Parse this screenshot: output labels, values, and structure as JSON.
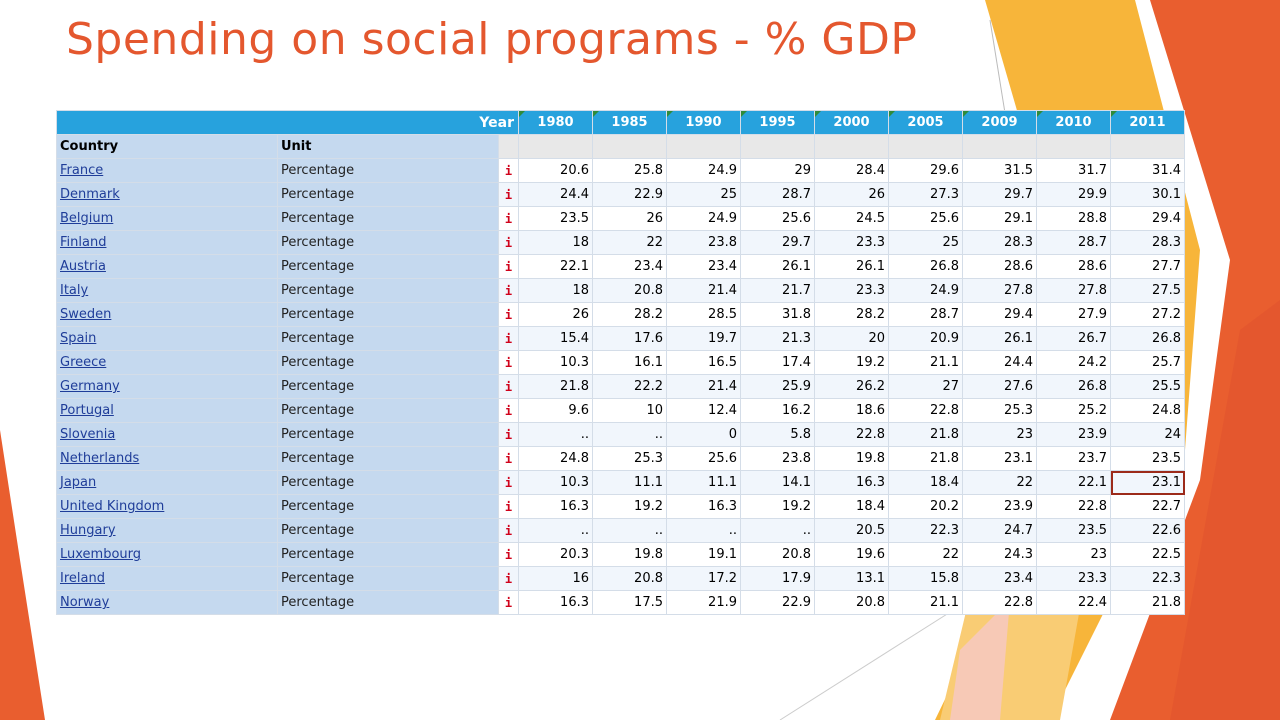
{
  "slide": {
    "title": "Spending on social programs - % GDP"
  },
  "table": {
    "year_label": "Year",
    "col_country": "Country",
    "col_unit": "Unit",
    "info_glyph": "i",
    "years": [
      "1980",
      "1985",
      "1990",
      "1995",
      "2000",
      "2005",
      "2009",
      "2010",
      "2011"
    ],
    "rows": [
      {
        "country": "France",
        "unit": "Percentage",
        "values": [
          "20.6",
          "25.8",
          "24.9",
          "29",
          "28.4",
          "29.6",
          "31.5",
          "31.7",
          "31.4"
        ]
      },
      {
        "country": "Denmark",
        "unit": "Percentage",
        "values": [
          "24.4",
          "22.9",
          "25",
          "28.7",
          "26",
          "27.3",
          "29.7",
          "29.9",
          "30.1"
        ]
      },
      {
        "country": "Belgium",
        "unit": "Percentage",
        "values": [
          "23.5",
          "26",
          "24.9",
          "25.6",
          "24.5",
          "25.6",
          "29.1",
          "28.8",
          "29.4"
        ]
      },
      {
        "country": "Finland",
        "unit": "Percentage",
        "values": [
          "18",
          "22",
          "23.8",
          "29.7",
          "23.3",
          "25",
          "28.3",
          "28.7",
          "28.3"
        ]
      },
      {
        "country": "Austria",
        "unit": "Percentage",
        "values": [
          "22.1",
          "23.4",
          "23.4",
          "26.1",
          "26.1",
          "26.8",
          "28.6",
          "28.6",
          "27.7"
        ]
      },
      {
        "country": "Italy",
        "unit": "Percentage",
        "values": [
          "18",
          "20.8",
          "21.4",
          "21.7",
          "23.3",
          "24.9",
          "27.8",
          "27.8",
          "27.5"
        ]
      },
      {
        "country": "Sweden",
        "unit": "Percentage",
        "values": [
          "26",
          "28.2",
          "28.5",
          "31.8",
          "28.2",
          "28.7",
          "29.4",
          "27.9",
          "27.2"
        ]
      },
      {
        "country": "Spain",
        "unit": "Percentage",
        "values": [
          "15.4",
          "17.6",
          "19.7",
          "21.3",
          "20",
          "20.9",
          "26.1",
          "26.7",
          "26.8"
        ]
      },
      {
        "country": "Greece",
        "unit": "Percentage",
        "values": [
          "10.3",
          "16.1",
          "16.5",
          "17.4",
          "19.2",
          "21.1",
          "24.4",
          "24.2",
          "25.7"
        ]
      },
      {
        "country": "Germany",
        "unit": "Percentage",
        "values": [
          "21.8",
          "22.2",
          "21.4",
          "25.9",
          "26.2",
          "27",
          "27.6",
          "26.8",
          "25.5"
        ]
      },
      {
        "country": "Portugal",
        "unit": "Percentage",
        "values": [
          "9.6",
          "10",
          "12.4",
          "16.2",
          "18.6",
          "22.8",
          "25.3",
          "25.2",
          "24.8"
        ]
      },
      {
        "country": "Slovenia",
        "unit": "Percentage",
        "values": [
          "..",
          "..",
          "0",
          "5.8",
          "22.8",
          "21.8",
          "23",
          "23.9",
          "24"
        ]
      },
      {
        "country": "Netherlands",
        "unit": "Percentage",
        "values": [
          "24.8",
          "25.3",
          "25.6",
          "23.8",
          "19.8",
          "21.8",
          "23.1",
          "23.7",
          "23.5"
        ]
      },
      {
        "country": "Japan",
        "unit": "Percentage",
        "values": [
          "10.3",
          "11.1",
          "11.1",
          "14.1",
          "16.3",
          "18.4",
          "22",
          "22.1",
          "23.1"
        ]
      },
      {
        "country": "United Kingdom",
        "unit": "Percentage",
        "values": [
          "16.3",
          "19.2",
          "16.3",
          "19.2",
          "18.4",
          "20.2",
          "23.9",
          "22.8",
          "22.7"
        ]
      },
      {
        "country": "Hungary",
        "unit": "Percentage",
        "values": [
          "..",
          "..",
          "..",
          "..",
          "20.5",
          "22.3",
          "24.7",
          "23.5",
          "22.6"
        ]
      },
      {
        "country": "Luxembourg",
        "unit": "Percentage",
        "values": [
          "20.3",
          "19.8",
          "19.1",
          "20.8",
          "19.6",
          "22",
          "24.3",
          "23",
          "22.5"
        ]
      },
      {
        "country": "Ireland",
        "unit": "Percentage",
        "values": [
          "16",
          "20.8",
          "17.2",
          "17.9",
          "13.1",
          "15.8",
          "23.4",
          "23.3",
          "22.3"
        ]
      },
      {
        "country": "Norway",
        "unit": "Percentage",
        "values": [
          "16.3",
          "17.5",
          "21.9",
          "22.9",
          "20.8",
          "21.1",
          "22.8",
          "22.4",
          "21.8"
        ]
      }
    ],
    "selected_cell": {
      "row": 13,
      "col": 8
    }
  },
  "theme": {
    "title_color": "#e4572e",
    "header_blue": "#27a2dd",
    "label_bg": "#c5d9ef",
    "link_color": "#1f3d99",
    "info_red": "#d0021b",
    "accent_orange": "#e95e2f",
    "accent_yellow": "#f7b53a"
  }
}
